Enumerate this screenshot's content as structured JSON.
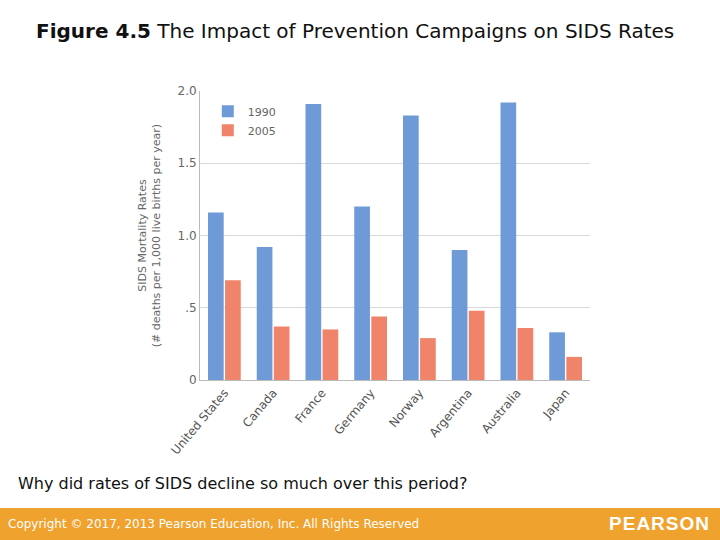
{
  "slide": {
    "figure": "Figure 4.5",
    "question": "Why did rates of SIDS decline so much over this period?",
    "copyright": "Copyright © 2017, 2013 Pearson Education, Inc. All Rights Reserved",
    "brand": "PEARSON"
  },
  "chart_data": {
    "type": "bar",
    "title": "The Impact of Prevention Campaigns on SIDS Rates",
    "ylabel": [
      "SIDS Mortality Rates",
      "(# deaths per 1,000 live births per year)"
    ],
    "categories": [
      "United States",
      "Canada",
      "France",
      "Germany",
      "Norway",
      "Argentina",
      "Australia",
      "Japan"
    ],
    "series": [
      {
        "name": "1990",
        "color": "#6e9ad8",
        "values": [
          1.16,
          0.92,
          1.91,
          1.2,
          1.83,
          0.9,
          1.92,
          0.33
        ]
      },
      {
        "name": "2005",
        "color": "#f0846a",
        "values": [
          0.69,
          0.37,
          0.35,
          0.44,
          0.29,
          0.48,
          0.36,
          0.16
        ]
      }
    ],
    "ylim": [
      0,
      2
    ],
    "yticks": [
      0,
      {
        "value": 0.5,
        "label": ".5"
      },
      {
        "value": 1,
        "label": "1.0"
      },
      {
        "value": 1.5,
        "label": "1.5"
      },
      {
        "value": 2,
        "label": "2.0"
      }
    ],
    "grid": true,
    "legend": "upper left"
  }
}
